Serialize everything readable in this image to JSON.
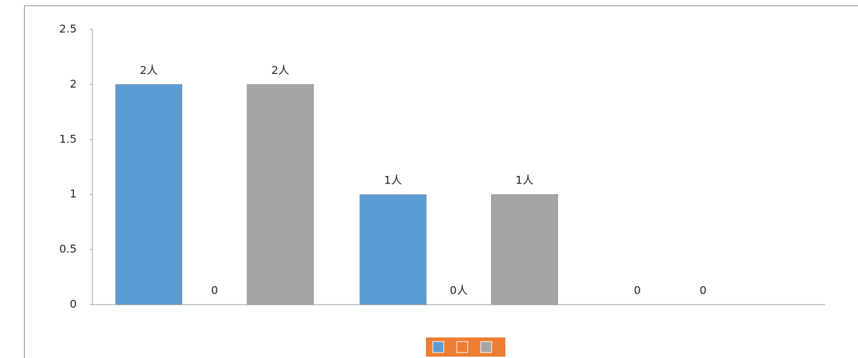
{
  "chart_data": {
    "type": "bar",
    "categories": [
      null,
      null,
      null
    ],
    "series": [
      {
        "color": "#5b9bd5",
        "values": [
          2,
          1,
          0
        ],
        "value_labels": [
          "2人",
          "1人",
          "0"
        ]
      },
      {
        "color": "#ed7d31",
        "values": [
          0,
          0,
          0
        ],
        "value_labels": [
          "0",
          "0人",
          "0"
        ]
      },
      {
        "color": "#a5a5a5",
        "values": [
          2,
          1,
          null
        ],
        "value_labels": [
          "2人",
          "1人",
          null
        ]
      }
    ],
    "ylim": [
      0,
      2.5
    ],
    "yticks": [
      0,
      0.5,
      1,
      1.5,
      2,
      2.5
    ],
    "grid": false,
    "legend": "bottom"
  }
}
